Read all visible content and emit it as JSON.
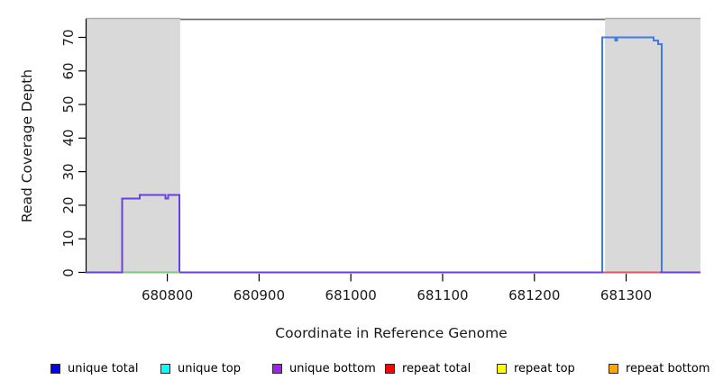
{
  "chart_data": {
    "type": "line",
    "title": "",
    "xlabel": "Coordinate in Reference Genome",
    "ylabel": "Read Coverage Depth",
    "x_ticks": [
      680800,
      680900,
      681000,
      681100,
      681200,
      681300
    ],
    "x_tick_labels": [
      "680800",
      "680900",
      "681000",
      "681100",
      "681200",
      "681300"
    ],
    "y_ticks": [
      0,
      10,
      20,
      30,
      40,
      50,
      60,
      70
    ],
    "y_tick_labels": [
      "0",
      "10",
      "20",
      "30",
      "40",
      "50",
      "60",
      "70"
    ],
    "xlim": [
      680711,
      681381
    ],
    "ylim": [
      0,
      75.5
    ],
    "grid": false,
    "legend_position": "bottom",
    "background": {
      "repeat_region_color": "#d9d9d9",
      "regions": [
        [
          680711,
          680814
        ],
        [
          681277,
          681381
        ]
      ]
    },
    "top_border_segment": [
      680814,
      681277
    ],
    "series": [
      {
        "name": "unique total",
        "color": "#3e7ce8",
        "points": [
          [
            680711,
            0
          ],
          [
            680751,
            0
          ],
          [
            680751,
            22
          ],
          [
            680770,
            22
          ],
          [
            680770,
            23
          ],
          [
            680798,
            23
          ],
          [
            680798,
            22
          ],
          [
            680801,
            22
          ],
          [
            680801,
            23
          ],
          [
            680813,
            23
          ],
          [
            680813,
            0
          ],
          [
            681274,
            0
          ],
          [
            681274,
            70
          ],
          [
            681288,
            70
          ],
          [
            681288,
            69
          ],
          [
            681290,
            69
          ],
          [
            681290,
            70
          ],
          [
            681330,
            70
          ],
          [
            681330,
            69
          ],
          [
            681335,
            69
          ],
          [
            681335,
            68
          ],
          [
            681339,
            68
          ],
          [
            681339,
            0
          ],
          [
            681381,
            0
          ]
        ]
      },
      {
        "name": "unique bottom",
        "color": "#6a3fe0",
        "points": [
          [
            680711,
            0
          ],
          [
            680751,
            0
          ],
          [
            680751,
            22
          ],
          [
            680770,
            22
          ],
          [
            680770,
            23
          ],
          [
            680798,
            23
          ],
          [
            680798,
            22
          ],
          [
            680801,
            22
          ],
          [
            680801,
            23
          ],
          [
            680813,
            23
          ],
          [
            680813,
            0
          ],
          [
            681381,
            0
          ]
        ]
      },
      {
        "name": "unique top zero segment",
        "color": "#7cc87c",
        "points": [
          [
            680752,
            0
          ],
          [
            680813,
            0
          ]
        ]
      },
      {
        "name": "repeat total zero segment",
        "color": "#e05660",
        "points": [
          [
            681275,
            0
          ],
          [
            681337,
            0
          ]
        ]
      }
    ],
    "legend": [
      {
        "label": "unique total",
        "color": "#0000ff"
      },
      {
        "label": "unique top",
        "color": "#00ffff"
      },
      {
        "label": "unique bottom",
        "color": "#a020f0"
      },
      {
        "label": "repeat total",
        "color": "#ff0000"
      },
      {
        "label": "repeat top",
        "color": "#ffff00"
      },
      {
        "label": "repeat bottom",
        "color": "#ffa500"
      }
    ]
  }
}
